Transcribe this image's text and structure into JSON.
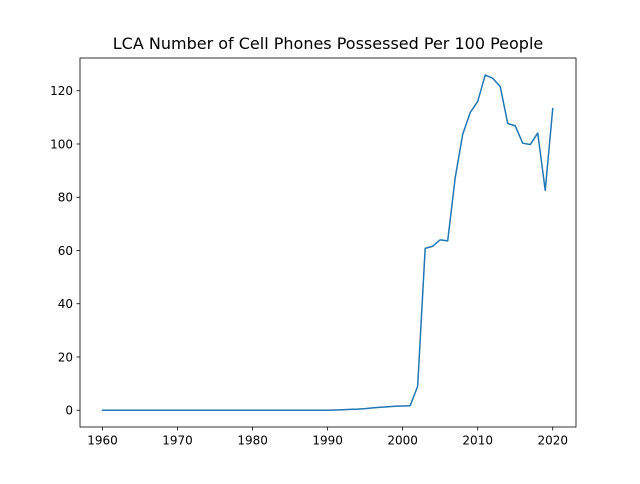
{
  "chart_data": {
    "type": "line",
    "title": "LCA Number of Cell Phones Possessed Per 100 People",
    "xlabel": "",
    "ylabel": "",
    "xlim": [
      1957,
      2023.1
    ],
    "ylim": [
      -6.3,
      132.3
    ],
    "grid": false,
    "x_ticks": [
      1960,
      1970,
      1980,
      1990,
      2000,
      2010,
      2020
    ],
    "y_ticks": [
      0,
      20,
      40,
      60,
      80,
      100,
      120
    ],
    "series": [
      {
        "color": "#1f77b4",
        "x": [
          1960,
          1961,
          1962,
          1963,
          1964,
          1965,
          1966,
          1967,
          1968,
          1969,
          1970,
          1971,
          1972,
          1973,
          1974,
          1975,
          1976,
          1977,
          1978,
          1979,
          1980,
          1981,
          1982,
          1983,
          1984,
          1985,
          1986,
          1987,
          1988,
          1989,
          1990,
          1991,
          1992,
          1993,
          1994,
          1995,
          1996,
          1997,
          1998,
          1999,
          2000,
          2001,
          2002,
          2003,
          2004,
          2005,
          2006,
          2007,
          2008,
          2009,
          2010,
          2011,
          2012,
          2013,
          2014,
          2015,
          2016,
          2017,
          2018,
          2019,
          2020
        ],
        "y": [
          0,
          0,
          0,
          0,
          0,
          0,
          0,
          0,
          0,
          0,
          0,
          0,
          0,
          0,
          0,
          0,
          0,
          0,
          0,
          0,
          0,
          0,
          0,
          0,
          0,
          0,
          0,
          0,
          0,
          0,
          0,
          0.1,
          0.2,
          0.3,
          0.4,
          0.6,
          0.9,
          1.1,
          1.3,
          1.5,
          1.6,
          1.7,
          9.0,
          60.8,
          61.6,
          64.0,
          63.6,
          87.3,
          103.6,
          111.8,
          116.0,
          125.9,
          124.7,
          121.6,
          107.7,
          106.8,
          100.3,
          99.8,
          104.1,
          82.6,
          113.3
        ]
      }
    ]
  }
}
